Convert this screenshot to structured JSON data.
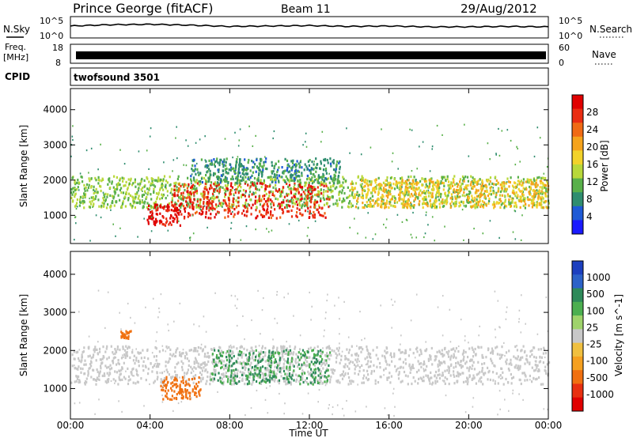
{
  "header": {
    "title": "Prince George (fitACF)",
    "beam": "Beam 11",
    "date": "29/Aug/2012"
  },
  "strip_labels": {
    "nsky": "N.Sky",
    "nsearch": "N.Search",
    "freq_line1": "Freq.",
    "freq_line2": "[MHz]",
    "nave": "Nave",
    "cpid": "CPID",
    "cpid_value": "twofsound 3501"
  },
  "noise_axis": {
    "top": "10^5",
    "bottom": "10^0"
  },
  "freq_axis": {
    "left_top": "18",
    "left_bottom": "8",
    "right_top": "60",
    "right_bottom": "0"
  },
  "x_axis": {
    "label": "Time UT",
    "ticks": [
      "00:00",
      "04:00",
      "08:00",
      "12:00",
      "16:00",
      "20:00",
      "00:00"
    ]
  },
  "ylabel": "Slant Range [km]",
  "y_ticks": [
    "1000",
    "2000",
    "3000",
    "4000"
  ],
  "power_colorbar": {
    "title": "Power [dB]",
    "ticks": [
      "4",
      "8",
      "12",
      "16",
      "20",
      "24",
      "28"
    ],
    "colors": [
      "#1a1aff",
      "#1e5ad6",
      "#2f8d6f",
      "#59b04a",
      "#b8d83a",
      "#f2d22a",
      "#f5a31c",
      "#f06a14",
      "#ea2d12",
      "#e00000"
    ]
  },
  "velocity_colorbar": {
    "title": "Velocity [m s^-1]",
    "ticks": [
      "1000",
      "500",
      "100",
      "25",
      "-25",
      "-100",
      "-500",
      "-1000"
    ],
    "colors": [
      "#1c3fbf",
      "#2c62c8",
      "#2e8a5a",
      "#4caf50",
      "#9fd36b",
      "#c8c8c8",
      "#f0c040",
      "#f5a020",
      "#f07010",
      "#e83010",
      "#e00000"
    ]
  },
  "chart_data": [
    {
      "type": "line",
      "title": "Noise (N.Sky)",
      "x": [
        0,
        2,
        4,
        6,
        8,
        10,
        12,
        14,
        16,
        18,
        20,
        22,
        24
      ],
      "values": [
        2.8,
        3.1,
        3.2,
        3.0,
        2.7,
        2.8,
        2.9,
        2.7,
        2.8,
        2.6,
        2.6,
        2.7,
        2.6
      ],
      "ylim": [
        0,
        5
      ]
    },
    {
      "type": "heatmap",
      "title": "Power",
      "xlim": [
        0,
        24
      ],
      "ylim": [
        200,
        4600
      ],
      "bands": [
        {
          "t0": 0,
          "t1": 24,
          "r0": 1200,
          "r1": 2100,
          "level": 12
        },
        {
          "t0": 5,
          "t1": 13,
          "r0": 900,
          "r1": 1900,
          "level": 26
        },
        {
          "t0": 3.8,
          "t1": 5.5,
          "r0": 700,
          "r1": 1300,
          "level": 28
        },
        {
          "t0": 14,
          "t1": 24,
          "r0": 1200,
          "r1": 2000,
          "level": 18
        },
        {
          "t0": 6,
          "t1": 13.5,
          "r0": 1900,
          "r1": 2600,
          "level": 8
        }
      ]
    },
    {
      "type": "heatmap",
      "title": "Velocity",
      "xlim": [
        0,
        24
      ],
      "ylim": [
        200,
        4600
      ],
      "bands": [
        {
          "t0": 0,
          "t1": 24,
          "r0": 1100,
          "r1": 2100,
          "level": 0
        },
        {
          "t0": 4.5,
          "t1": 6.5,
          "r0": 700,
          "r1": 1300,
          "level": -300
        },
        {
          "t0": 7,
          "t1": 13,
          "r0": 1100,
          "r1": 2000,
          "level": 150
        },
        {
          "t0": 2.5,
          "t1": 3,
          "r0": 2300,
          "r1": 2500,
          "level": -300
        }
      ]
    }
  ]
}
